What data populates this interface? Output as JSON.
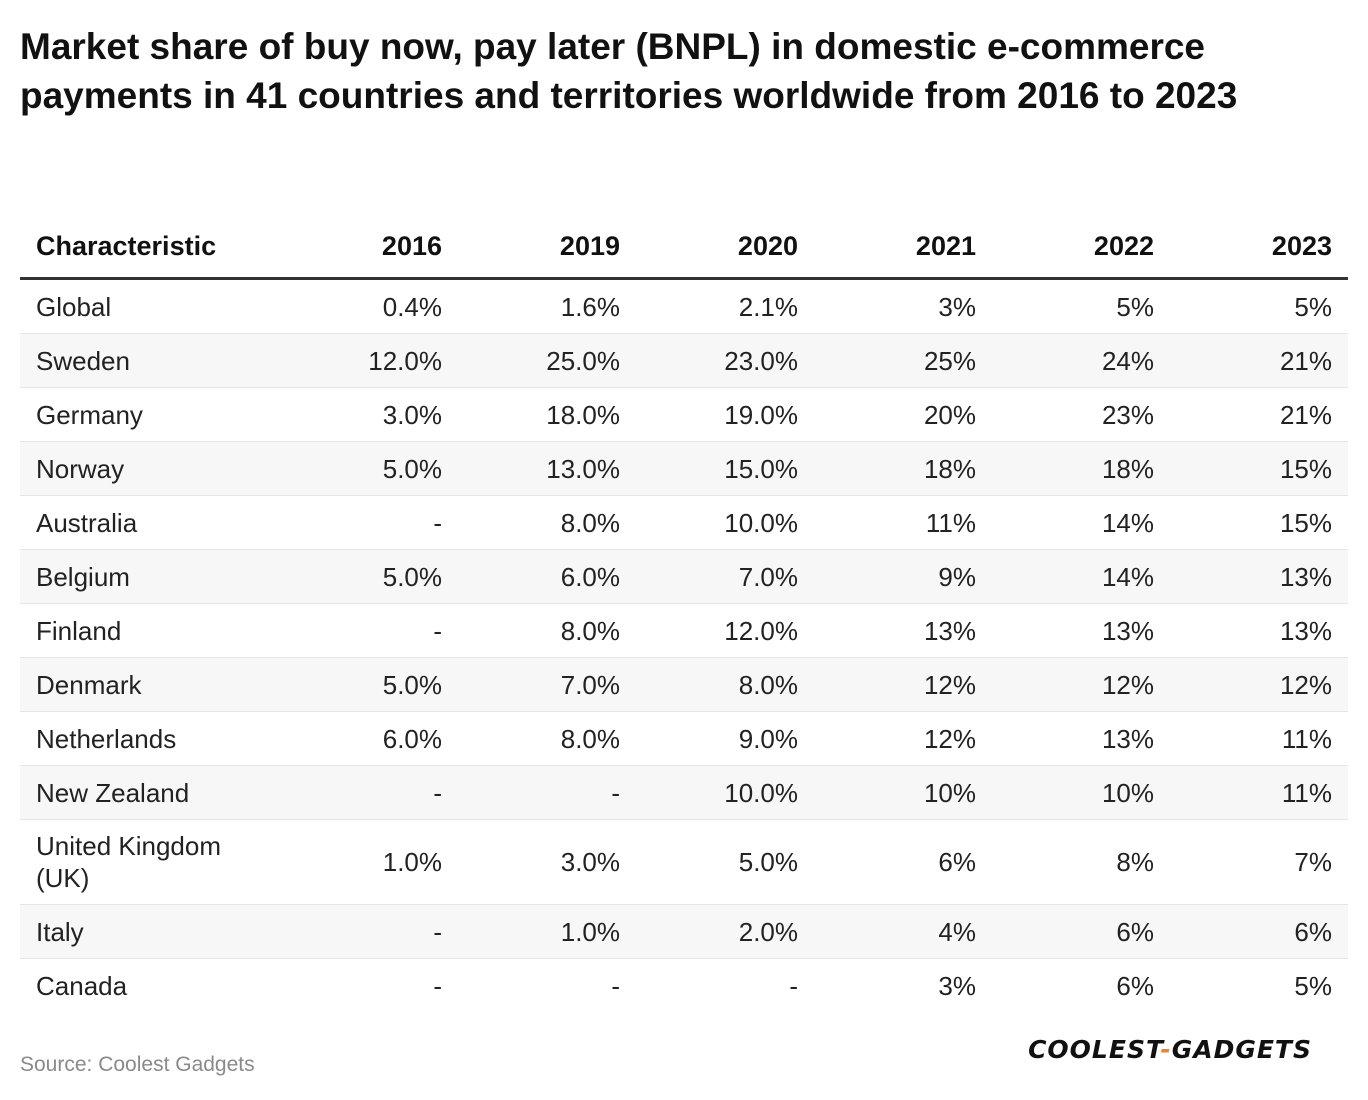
{
  "title": "Market share of buy now, pay later (BNPL) in domestic e-commerce payments in 41 countries and territories worldwide from 2016 to 2023",
  "source": "Source: Coolest Gadgets",
  "brand": {
    "left": "COOLEST",
    "sep": "-",
    "right": "GADGETS",
    "accent_color": "#e8843a"
  },
  "chart_data": {
    "type": "table",
    "title": "Market share of buy now, pay later (BNPL) in domestic e-commerce payments in 41 countries and territories worldwide from 2016 to 2023",
    "columns": [
      "Characteristic",
      "2016",
      "2019",
      "2020",
      "2021",
      "2022",
      "2023"
    ],
    "rows": [
      [
        "Global",
        "0.4%",
        "1.6%",
        "2.1%",
        "3%",
        "5%",
        "5%"
      ],
      [
        "Sweden",
        "12.0%",
        "25.0%",
        "23.0%",
        "25%",
        "24%",
        "21%"
      ],
      [
        "Germany",
        "3.0%",
        "18.0%",
        "19.0%",
        "20%",
        "23%",
        "21%"
      ],
      [
        "Norway",
        "5.0%",
        "13.0%",
        "15.0%",
        "18%",
        "18%",
        "15%"
      ],
      [
        "Australia",
        "-",
        "8.0%",
        "10.0%",
        "11%",
        "14%",
        "15%"
      ],
      [
        "Belgium",
        "5.0%",
        "6.0%",
        "7.0%",
        "9%",
        "14%",
        "13%"
      ],
      [
        "Finland",
        "-",
        "8.0%",
        "12.0%",
        "13%",
        "13%",
        "13%"
      ],
      [
        "Denmark",
        "5.0%",
        "7.0%",
        "8.0%",
        "12%",
        "12%",
        "12%"
      ],
      [
        "Netherlands",
        "6.0%",
        "8.0%",
        "9.0%",
        "12%",
        "13%",
        "11%"
      ],
      [
        "New Zealand",
        "-",
        "-",
        "10.0%",
        "10%",
        "10%",
        "11%"
      ],
      [
        "United Kingdom (UK)",
        "1.0%",
        "3.0%",
        "5.0%",
        "6%",
        "8%",
        "7%"
      ],
      [
        "Italy",
        "-",
        "1.0%",
        "2.0%",
        "4%",
        "6%",
        "6%"
      ],
      [
        "Canada",
        "-",
        "-",
        "-",
        "3%",
        "6%",
        "5%"
      ]
    ]
  }
}
